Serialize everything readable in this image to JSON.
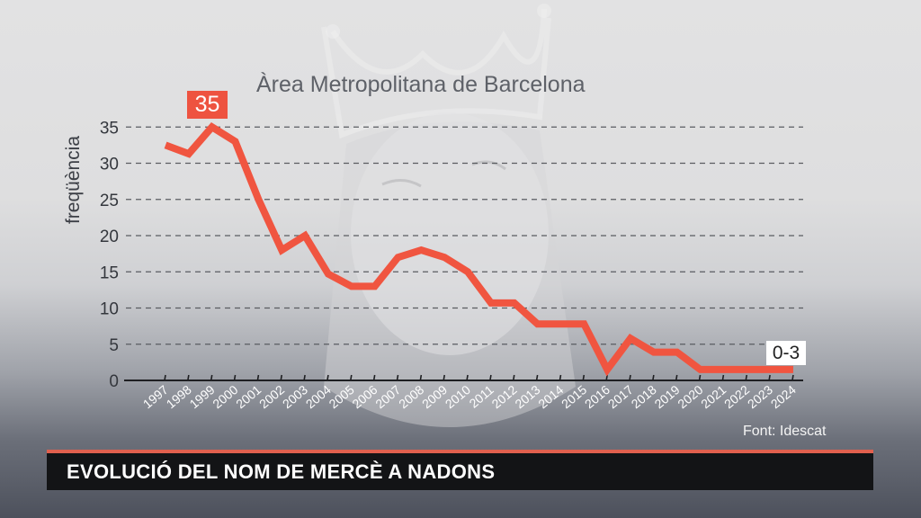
{
  "chart_data": {
    "type": "line",
    "title": "Àrea Metropolitana de Barcelona",
    "xlabel": "",
    "ylabel": "freqüència",
    "ylim": [
      0,
      35
    ],
    "yticks": [
      0,
      5,
      10,
      15,
      20,
      25,
      30,
      35
    ],
    "grid": "horizontal dashed",
    "categories": [
      "1997",
      "1998",
      "1999",
      "2000",
      "2001",
      "2002",
      "2003",
      "2004",
      "2005",
      "2006",
      "2007",
      "2008",
      "2009",
      "2010",
      "2011",
      "2012",
      "2013",
      "2014",
      "2015",
      "2016",
      "2017",
      "2018",
      "2019",
      "2020",
      "2021",
      "2022",
      "2023",
      "2024"
    ],
    "series": [
      {
        "name": "Mercè",
        "color": "#f05540",
        "values": [
          32.5,
          31.3,
          35,
          33,
          25,
          18,
          20,
          14.7,
          13,
          13,
          17,
          18,
          17,
          15,
          10.7,
          10.7,
          7.8,
          7.8,
          7.8,
          1.5,
          5.8,
          3.9,
          3.9,
          1.5,
          1.5,
          1.5,
          1.5,
          1.5
        ]
      }
    ],
    "annotations": [
      {
        "label": "35",
        "at": "1999",
        "style": "red box"
      },
      {
        "label": "0-3",
        "at": "2024",
        "style": "white box"
      }
    ]
  },
  "labels": {
    "title": "Àrea Metropolitana de Barcelona",
    "ylabel": "freqüència",
    "peak": "35",
    "end": "0-3",
    "source": "Font: Idescat",
    "banner": "EVOLUCIÓ DEL NOM DE MERCÈ A NADONS"
  },
  "colors": {
    "line": "#f05540",
    "accent_bar": "#e0604e",
    "banner_bg": "#131416"
  }
}
